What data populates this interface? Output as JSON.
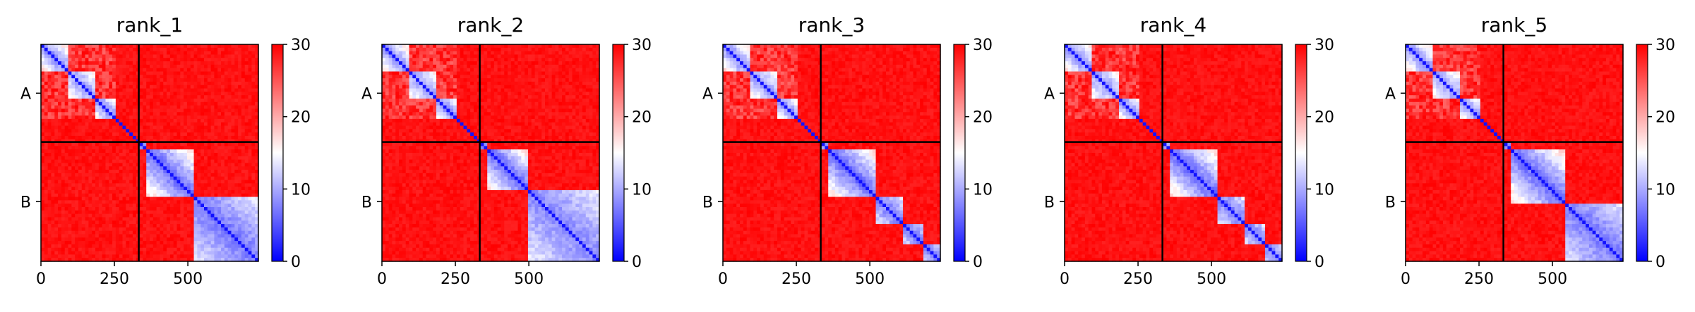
{
  "chart_data": {
    "type": "heatmap",
    "description": "Five predicted-aligned-error style heatmaps (one per ranked model) for a two-chain complex; chain A spans residues 0 to ~333, chain B spans ~333 to ~740. Low values (blue) mark confidently positioned residue pairs, high values (red) uncertain pairs.",
    "shared": {
      "x_ticks": [
        0,
        250,
        500
      ],
      "x_tick_labels": [
        "0",
        "250",
        "500"
      ],
      "x_range": [
        0,
        740
      ],
      "y_tick_labels": [
        "A",
        "B"
      ],
      "chain_boundary": 333,
      "colorbar": {
        "min": 0,
        "max": 30,
        "ticks": [
          0,
          10,
          20,
          30
        ],
        "tick_labels": [
          "0",
          "10",
          "20",
          "30"
        ],
        "colormap": [
          "#0000ff",
          "#ffffff",
          "#ff0000"
        ]
      }
    },
    "panels": [
      {
        "title": "rank_1",
        "chainA_blocks": [
          [
            0,
            90,
            8,
            18
          ],
          [
            90,
            185,
            9,
            17
          ],
          [
            185,
            255,
            8,
            17
          ]
        ],
        "chainB_blocks": [
          [
            330,
            360,
            6,
            14
          ],
          [
            360,
            520,
            6,
            18
          ],
          [
            520,
            740,
            7,
            14
          ]
        ],
        "offdiag_mean": 29
      },
      {
        "title": "rank_2",
        "chainA_blocks": [
          [
            0,
            90,
            8,
            18
          ],
          [
            90,
            185,
            9,
            17
          ],
          [
            185,
            255,
            8,
            17
          ]
        ],
        "chainB_blocks": [
          [
            330,
            360,
            6,
            14
          ],
          [
            360,
            500,
            6,
            18
          ],
          [
            500,
            740,
            8,
            14
          ]
        ],
        "offdiag_mean": 29
      },
      {
        "title": "rank_3",
        "chainA_blocks": [
          [
            0,
            90,
            8,
            18
          ],
          [
            90,
            185,
            9,
            17
          ],
          [
            185,
            255,
            8,
            17
          ]
        ],
        "chainB_blocks": [
          [
            330,
            360,
            6,
            14
          ],
          [
            360,
            520,
            6,
            18
          ],
          [
            520,
            610,
            7,
            14
          ],
          [
            610,
            680,
            7,
            14
          ],
          [
            680,
            740,
            7,
            14
          ]
        ],
        "offdiag_mean": 29
      },
      {
        "title": "rank_4",
        "chainA_blocks": [
          [
            0,
            90,
            8,
            18
          ],
          [
            90,
            185,
            9,
            17
          ],
          [
            185,
            255,
            8,
            17
          ]
        ],
        "chainB_blocks": [
          [
            330,
            360,
            6,
            14
          ],
          [
            360,
            520,
            6,
            18
          ],
          [
            520,
            610,
            7,
            14
          ],
          [
            610,
            680,
            7,
            14
          ],
          [
            680,
            740,
            7,
            14
          ]
        ],
        "offdiag_mean": 29
      },
      {
        "title": "rank_5",
        "chainA_blocks": [
          [
            0,
            90,
            8,
            18
          ],
          [
            90,
            185,
            9,
            17
          ],
          [
            185,
            255,
            8,
            17
          ]
        ],
        "chainB_blocks": [
          [
            330,
            360,
            6,
            14
          ],
          [
            360,
            540,
            6,
            18
          ],
          [
            540,
            740,
            7,
            14
          ]
        ],
        "offdiag_mean": 29
      }
    ]
  }
}
